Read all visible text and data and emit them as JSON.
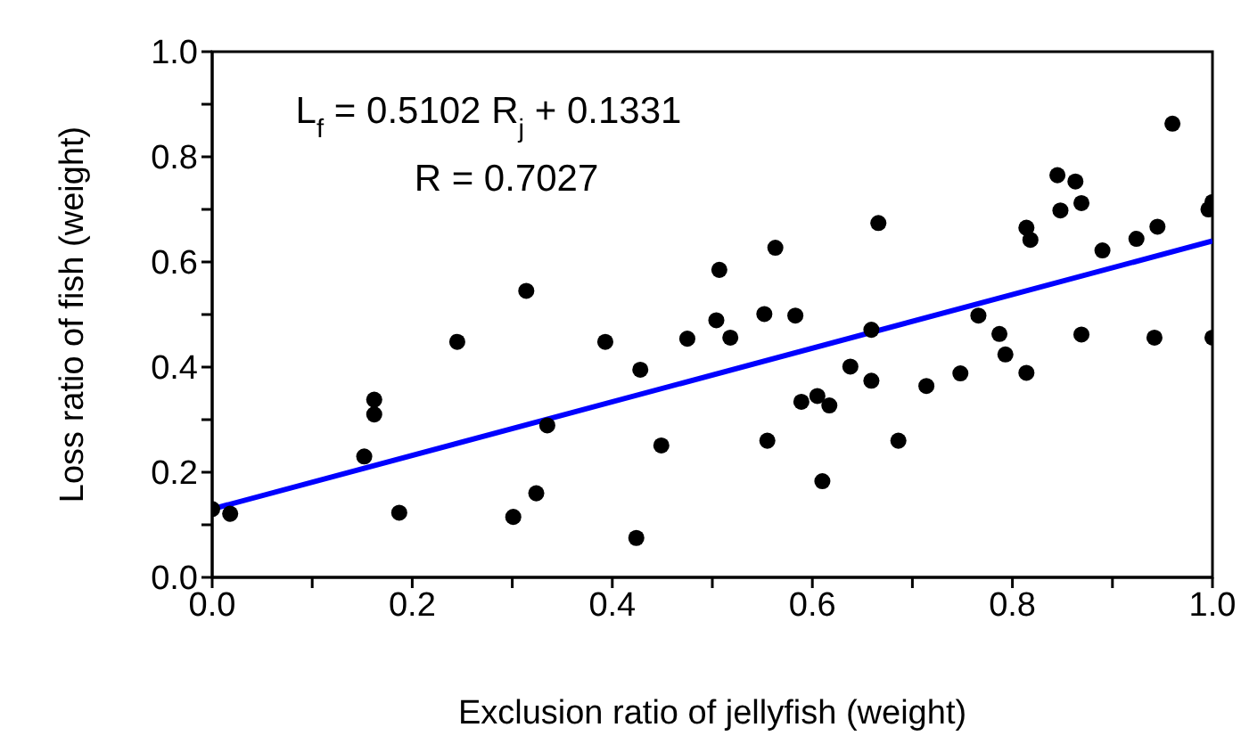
{
  "chart_data": {
    "type": "scatter",
    "xlabel": "Exclusion ratio of jellyfish (weight)",
    "ylabel": "Loss ratio of fish (weight)",
    "annotations": [
      "L$_{f}$ = 0.5102 R$_{j}$ + 0.1331",
      "R = 0.7027"
    ],
    "xlim": [
      0,
      1
    ],
    "ylim": [
      0,
      1
    ],
    "xticks": [
      {
        "value": 0,
        "label": "0.0"
      },
      {
        "value": 0.1,
        "label": null
      },
      {
        "value": 0.2,
        "label": "0.2"
      },
      {
        "value": 0.3,
        "label": null
      },
      {
        "value": 0.4,
        "label": "0.4"
      },
      {
        "value": 0.5,
        "label": null
      },
      {
        "value": 0.6,
        "label": "0.6"
      },
      {
        "value": 0.7,
        "label": null
      },
      {
        "value": 0.8,
        "label": "0.8"
      },
      {
        "value": 0.9,
        "label": null
      },
      {
        "value": 1,
        "label": "1.0"
      }
    ],
    "yticks": [
      {
        "value": 0,
        "label": "0.0"
      },
      {
        "value": 0.1,
        "label": null
      },
      {
        "value": 0.2,
        "label": "0.2"
      },
      {
        "value": 0.3,
        "label": null
      },
      {
        "value": 0.4,
        "label": "0.4"
      },
      {
        "value": 0.5,
        "label": null
      },
      {
        "value": 0.6,
        "label": "0.6"
      },
      {
        "value": 0.7,
        "label": null
      },
      {
        "value": 0.8,
        "label": "0.8"
      },
      {
        "value": 0.9,
        "label": null
      },
      {
        "value": 1,
        "label": "1.0"
      }
    ],
    "grid": false,
    "legend": false,
    "marker": "circle",
    "series": [
      {
        "color": "#000000",
        "x": [
          0,
          0.018,
          0.152,
          0.162,
          0.162,
          0.187,
          0.245,
          0.301,
          0.314,
          0.324,
          0.335,
          0.393,
          0.424,
          0.428,
          0.449,
          0.475,
          0.507,
          0.504,
          0.518,
          0.552,
          0.563,
          0.555,
          0.583,
          0.589,
          0.605,
          0.61,
          0.617,
          0.638,
          0.659,
          0.659,
          0.666,
          0.686,
          0.714,
          0.748,
          0.766,
          0.787,
          0.793,
          0.814,
          0.814,
          0.818,
          0.845,
          0.848,
          0.863,
          0.869,
          0.869,
          0.89,
          0.924,
          0.942,
          0.945,
          0.96,
          0.996,
          1,
          1
        ],
        "values": [
          0.13,
          0.121,
          0.23,
          0.338,
          0.31,
          0.123,
          0.448,
          0.115,
          0.545,
          0.16,
          0.289,
          0.448,
          0.075,
          0.395,
          0.251,
          0.454,
          0.585,
          0.489,
          0.456,
          0.501,
          0.627,
          0.26,
          0.498,
          0.334,
          0.345,
          0.183,
          0.327,
          0.401,
          0.471,
          0.374,
          0.674,
          0.26,
          0.364,
          0.388,
          0.498,
          0.463,
          0.424,
          0.389,
          0.665,
          0.642,
          0.765,
          0.698,
          0.753,
          0.712,
          0.462,
          0.622,
          0.644,
          0.456,
          0.667,
          0.863,
          0.7,
          0.714,
          0.456
        ]
      },
      {
        "type": "line",
        "color": "#0000ff",
        "marker": "none",
        "x": [
          0,
          1
        ],
        "values": [
          0.13,
          0.64
        ]
      }
    ]
  }
}
